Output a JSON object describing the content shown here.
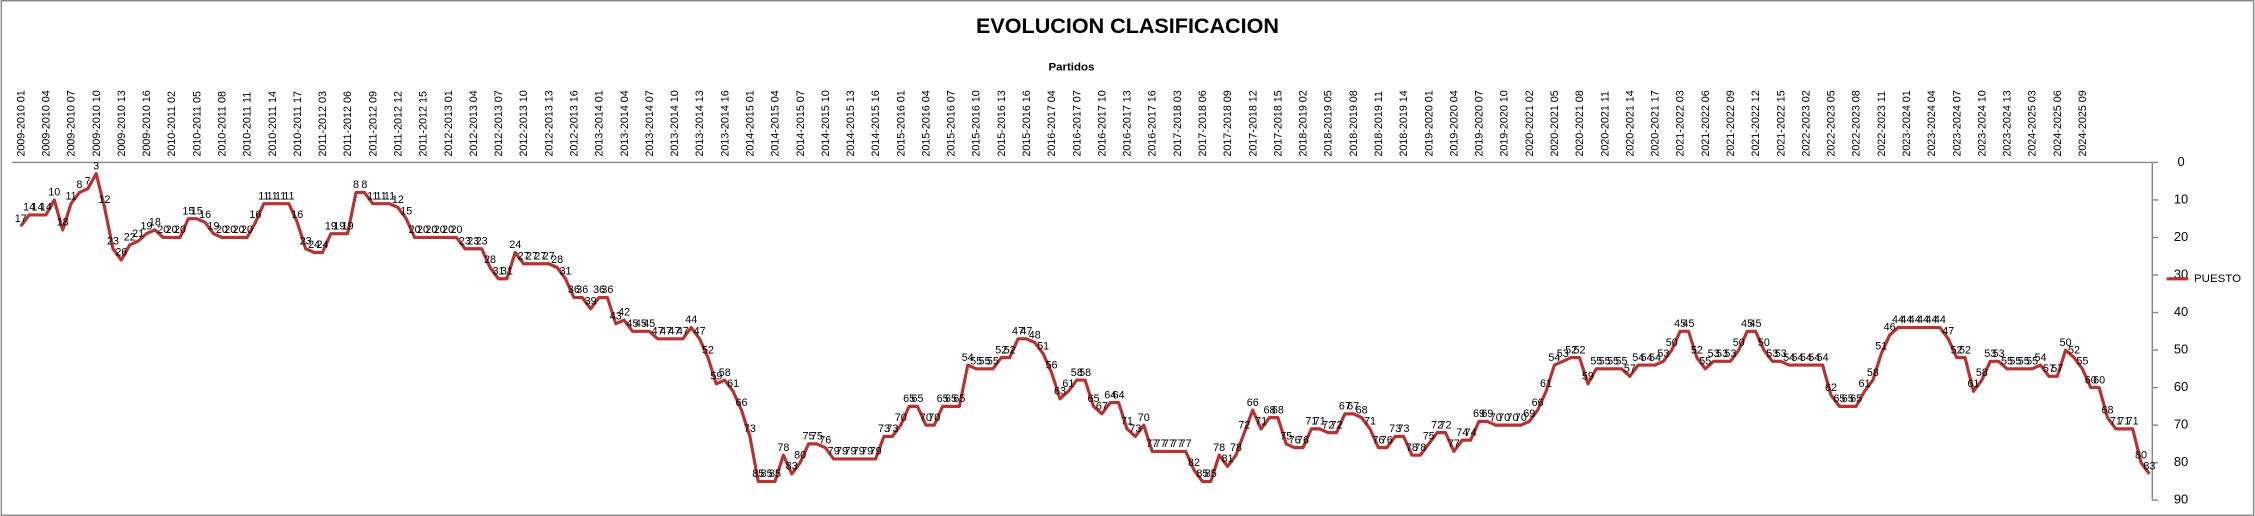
{
  "chart_data": {
    "type": "line",
    "title": "EVOLUCION CLASIFICACION",
    "x_label": "Partidos",
    "categories": [
      "2009-2010 01",
      null,
      null,
      "2009-2010 04",
      null,
      null,
      "2009-2010 07",
      null,
      null,
      "2009-2010 10",
      null,
      null,
      "2009-2010 13",
      null,
      null,
      "2009-2010 16",
      null,
      null,
      "2010-2011 02",
      null,
      null,
      "2010-2011 05",
      null,
      null,
      "2010-2011 08",
      null,
      null,
      "2010-2011 11",
      null,
      null,
      "2010-2011 14",
      null,
      null,
      "2010-2011 17",
      null,
      null,
      "2011-2012 03",
      null,
      null,
      "2011-2012 06",
      null,
      null,
      "2011-2012 09",
      null,
      null,
      "2011-2012 12",
      null,
      null,
      "2011-2012 15",
      null,
      null,
      "2012-2013 01",
      null,
      null,
      "2012-2013 04",
      null,
      null,
      "2012-2013 07",
      null,
      null,
      "2012-2013 10",
      null,
      null,
      "2012-2013 13",
      null,
      null,
      "2012-2013 16",
      null,
      null,
      "2013-2014 01",
      null,
      null,
      "2013-2014 04",
      null,
      null,
      "2013-2014 07",
      null,
      null,
      "2013-2014 10",
      null,
      null,
      "2013-2014 13",
      null,
      null,
      "2013-2014 16",
      null,
      null,
      "2014-2015 01",
      null,
      null,
      "2014-2015 04",
      null,
      null,
      "2014-2015 07",
      null,
      null,
      "2014-2015 10",
      null,
      null,
      "2014-2015 13",
      null,
      null,
      "2014-2015 16",
      null,
      null,
      "2015-2016 01",
      null,
      null,
      "2015-2016 04",
      null,
      null,
      "2015-2016 07",
      null,
      null,
      "2015-2016 10",
      null,
      null,
      "2015-2016 13",
      null,
      null,
      "2015-2016 16",
      null,
      null,
      "2016-2017 04",
      null,
      null,
      "2016-2017 07",
      null,
      null,
      "2016-2017 10",
      null,
      null,
      "2016-2017 13",
      null,
      null,
      "2016-2017 16",
      null,
      null,
      "2017-2018 03",
      null,
      null,
      "2017-2018 06",
      null,
      null,
      "2017-2018 09",
      null,
      null,
      "2017-2018 12",
      null,
      null,
      "2017-2018 15",
      null,
      null,
      "2018-2019 02",
      null,
      null,
      "2018-2019 05",
      null,
      null,
      "2018-2019 08",
      null,
      null,
      "2018-2019 11",
      null,
      null,
      "2018-2019 14",
      null,
      null,
      "2019-2020 01",
      null,
      null,
      "2019-2020 04",
      null,
      null,
      "2019-2020 07",
      null,
      null,
      "2019-2020 10",
      null,
      null,
      "2020-2021 02",
      null,
      null,
      "2020-2021 05",
      null,
      null,
      "2020-2021 08",
      null,
      null,
      "2020-2021 11",
      null,
      null,
      "2020-2021 14",
      null,
      null,
      "2020-2021 17",
      null,
      null,
      "2021-2022 03",
      null,
      null,
      "2021-2022 06",
      null,
      null,
      "2021-2022 09",
      null,
      null,
      "2021-2022 12",
      null,
      null,
      "2021-2022 15",
      null,
      null,
      "2022-2023 02",
      null,
      null,
      "2022-2023 05",
      null,
      null,
      "2022-2023 08",
      null,
      null,
      "2022-2023 11",
      null,
      null,
      "2023-2024 01",
      null,
      null,
      "2023-2024 04",
      null,
      null,
      "2023-2024 07",
      null,
      null,
      "2023-2024 10",
      null,
      null,
      "2023-2024 13",
      null,
      null,
      "2024-2025 03",
      null,
      null,
      "2024-2025 06",
      null,
      null,
      "2024-2025 09",
      null,
      null,
      null,
      null,
      null,
      null,
      null,
      null
    ],
    "series": [
      {
        "name": "PUESTO",
        "color": "#b83232",
        "values": [
          17,
          14,
          14,
          14,
          10,
          18,
          11,
          8,
          7,
          3,
          12,
          23,
          26,
          22,
          21,
          19,
          18,
          20,
          20,
          20,
          15,
          15,
          16,
          19,
          20,
          20,
          20,
          20,
          16,
          11,
          11,
          11,
          11,
          16,
          23,
          24,
          24,
          19,
          19,
          19,
          8,
          8,
          11,
          11,
          11,
          12,
          15,
          20,
          20,
          20,
          20,
          20,
          20,
          23,
          23,
          23,
          28,
          31,
          31,
          24,
          27,
          27,
          27,
          27,
          28,
          31,
          36,
          36,
          39,
          36,
          36,
          43,
          42,
          45,
          45,
          45,
          47,
          47,
          47,
          47,
          44,
          47,
          52,
          59,
          58,
          61,
          66,
          73,
          85,
          85,
          85,
          78,
          83,
          80,
          75,
          75,
          76,
          79,
          79,
          79,
          79,
          79,
          79,
          73,
          73,
          70,
          65,
          65,
          70,
          70,
          65,
          65,
          65,
          54,
          55,
          55,
          55,
          52,
          52,
          47,
          47,
          48,
          51,
          56,
          63,
          61,
          58,
          58,
          65,
          67,
          64,
          64,
          71,
          73,
          70,
          77,
          77,
          77,
          77,
          77,
          82,
          85,
          85,
          78,
          81,
          78,
          72,
          66,
          71,
          68,
          68,
          75,
          76,
          76,
          71,
          71,
          72,
          72,
          67,
          67,
          68,
          71,
          76,
          76,
          73,
          73,
          78,
          78,
          75,
          72,
          72,
          77,
          74,
          74,
          69,
          69,
          70,
          70,
          70,
          70,
          69,
          66,
          61,
          54,
          53,
          52,
          52,
          59,
          55,
          55,
          55,
          55,
          57,
          54,
          54,
          54,
          53,
          50,
          45,
          45,
          52,
          55,
          53,
          53,
          53,
          50,
          45,
          45,
          50,
          53,
          53,
          54,
          54,
          54,
          54,
          54,
          62,
          65,
          65,
          65,
          61,
          58,
          51,
          46,
          44,
          44,
          44,
          44,
          44,
          44,
          47,
          52,
          52,
          61,
          58,
          53,
          53,
          55,
          55,
          55,
          55,
          54,
          57,
          57,
          50,
          52,
          55,
          60,
          60,
          68,
          71,
          71,
          71,
          80,
          83
        ]
      }
    ],
    "ylim": [
      0,
      90
    ],
    "yticks": [
      0,
      10,
      20,
      30,
      40,
      50,
      60,
      70,
      80,
      90
    ],
    "y_inverted": true,
    "y_axis_side": "right",
    "x_axis_side": "top",
    "legend": "right",
    "data_labels": true
  }
}
